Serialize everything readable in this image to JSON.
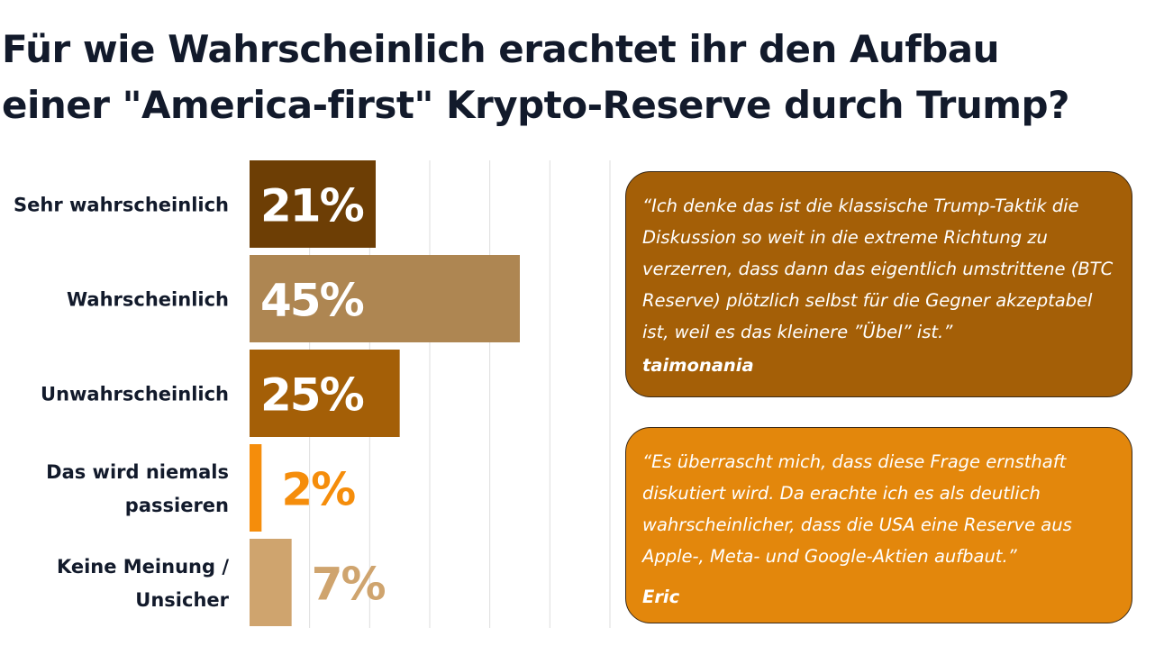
{
  "title": {
    "line1": "Für wie Wahrscheinlich erachtet ihr den Aufbau",
    "line2": "einer \"America-first\" Krypto-Reserve durch Trump?"
  },
  "chart_data": {
    "type": "bar",
    "orientation": "horizontal",
    "categories": [
      [
        "Sehr wahrscheinlich"
      ],
      [
        "Wahrscheinlich"
      ],
      [
        "Unwahrscheinlich"
      ],
      [
        "Das wird niemals",
        "passieren"
      ],
      [
        "Keine Meinung /",
        "Unsicher"
      ]
    ],
    "values": [
      21,
      45,
      25,
      2,
      7
    ],
    "value_labels": [
      "21%",
      "45%",
      "25%",
      "2%",
      "7%"
    ],
    "unit": "%",
    "xlim": [
      0,
      60
    ],
    "grid": true,
    "colors": [
      "#6d3e05",
      "#ae8652",
      "#a45f07",
      "#f58d0b",
      "#cfa46e"
    ],
    "label_colors": [
      "#ffffff",
      "#ffffff",
      "#ffffff",
      "#f58d0b",
      "#cfa46e"
    ]
  },
  "quotes": [
    {
      "text": "“Ich denke das ist die klassische Trump-Taktik die Diskussion so weit in die extreme Richtung zu verzerren, dass dann das eigentlich umstrittene (BTC Reserve) plötzlich selbst für die Gegner akzeptabel ist, weil es das kleinere ”Übel” ist.”",
      "author": "taimonania",
      "color": "#a45f07"
    },
    {
      "text": "“Es überrascht mich, dass diese Frage ernsthaft diskutiert wird. Da erachte ich es als deutlich wahrscheinlicher, dass die USA eine Reserve aus Apple-, Meta- und Google-Aktien aufbaut.”",
      "author": "Eric",
      "color": "#e3870c"
    }
  ]
}
